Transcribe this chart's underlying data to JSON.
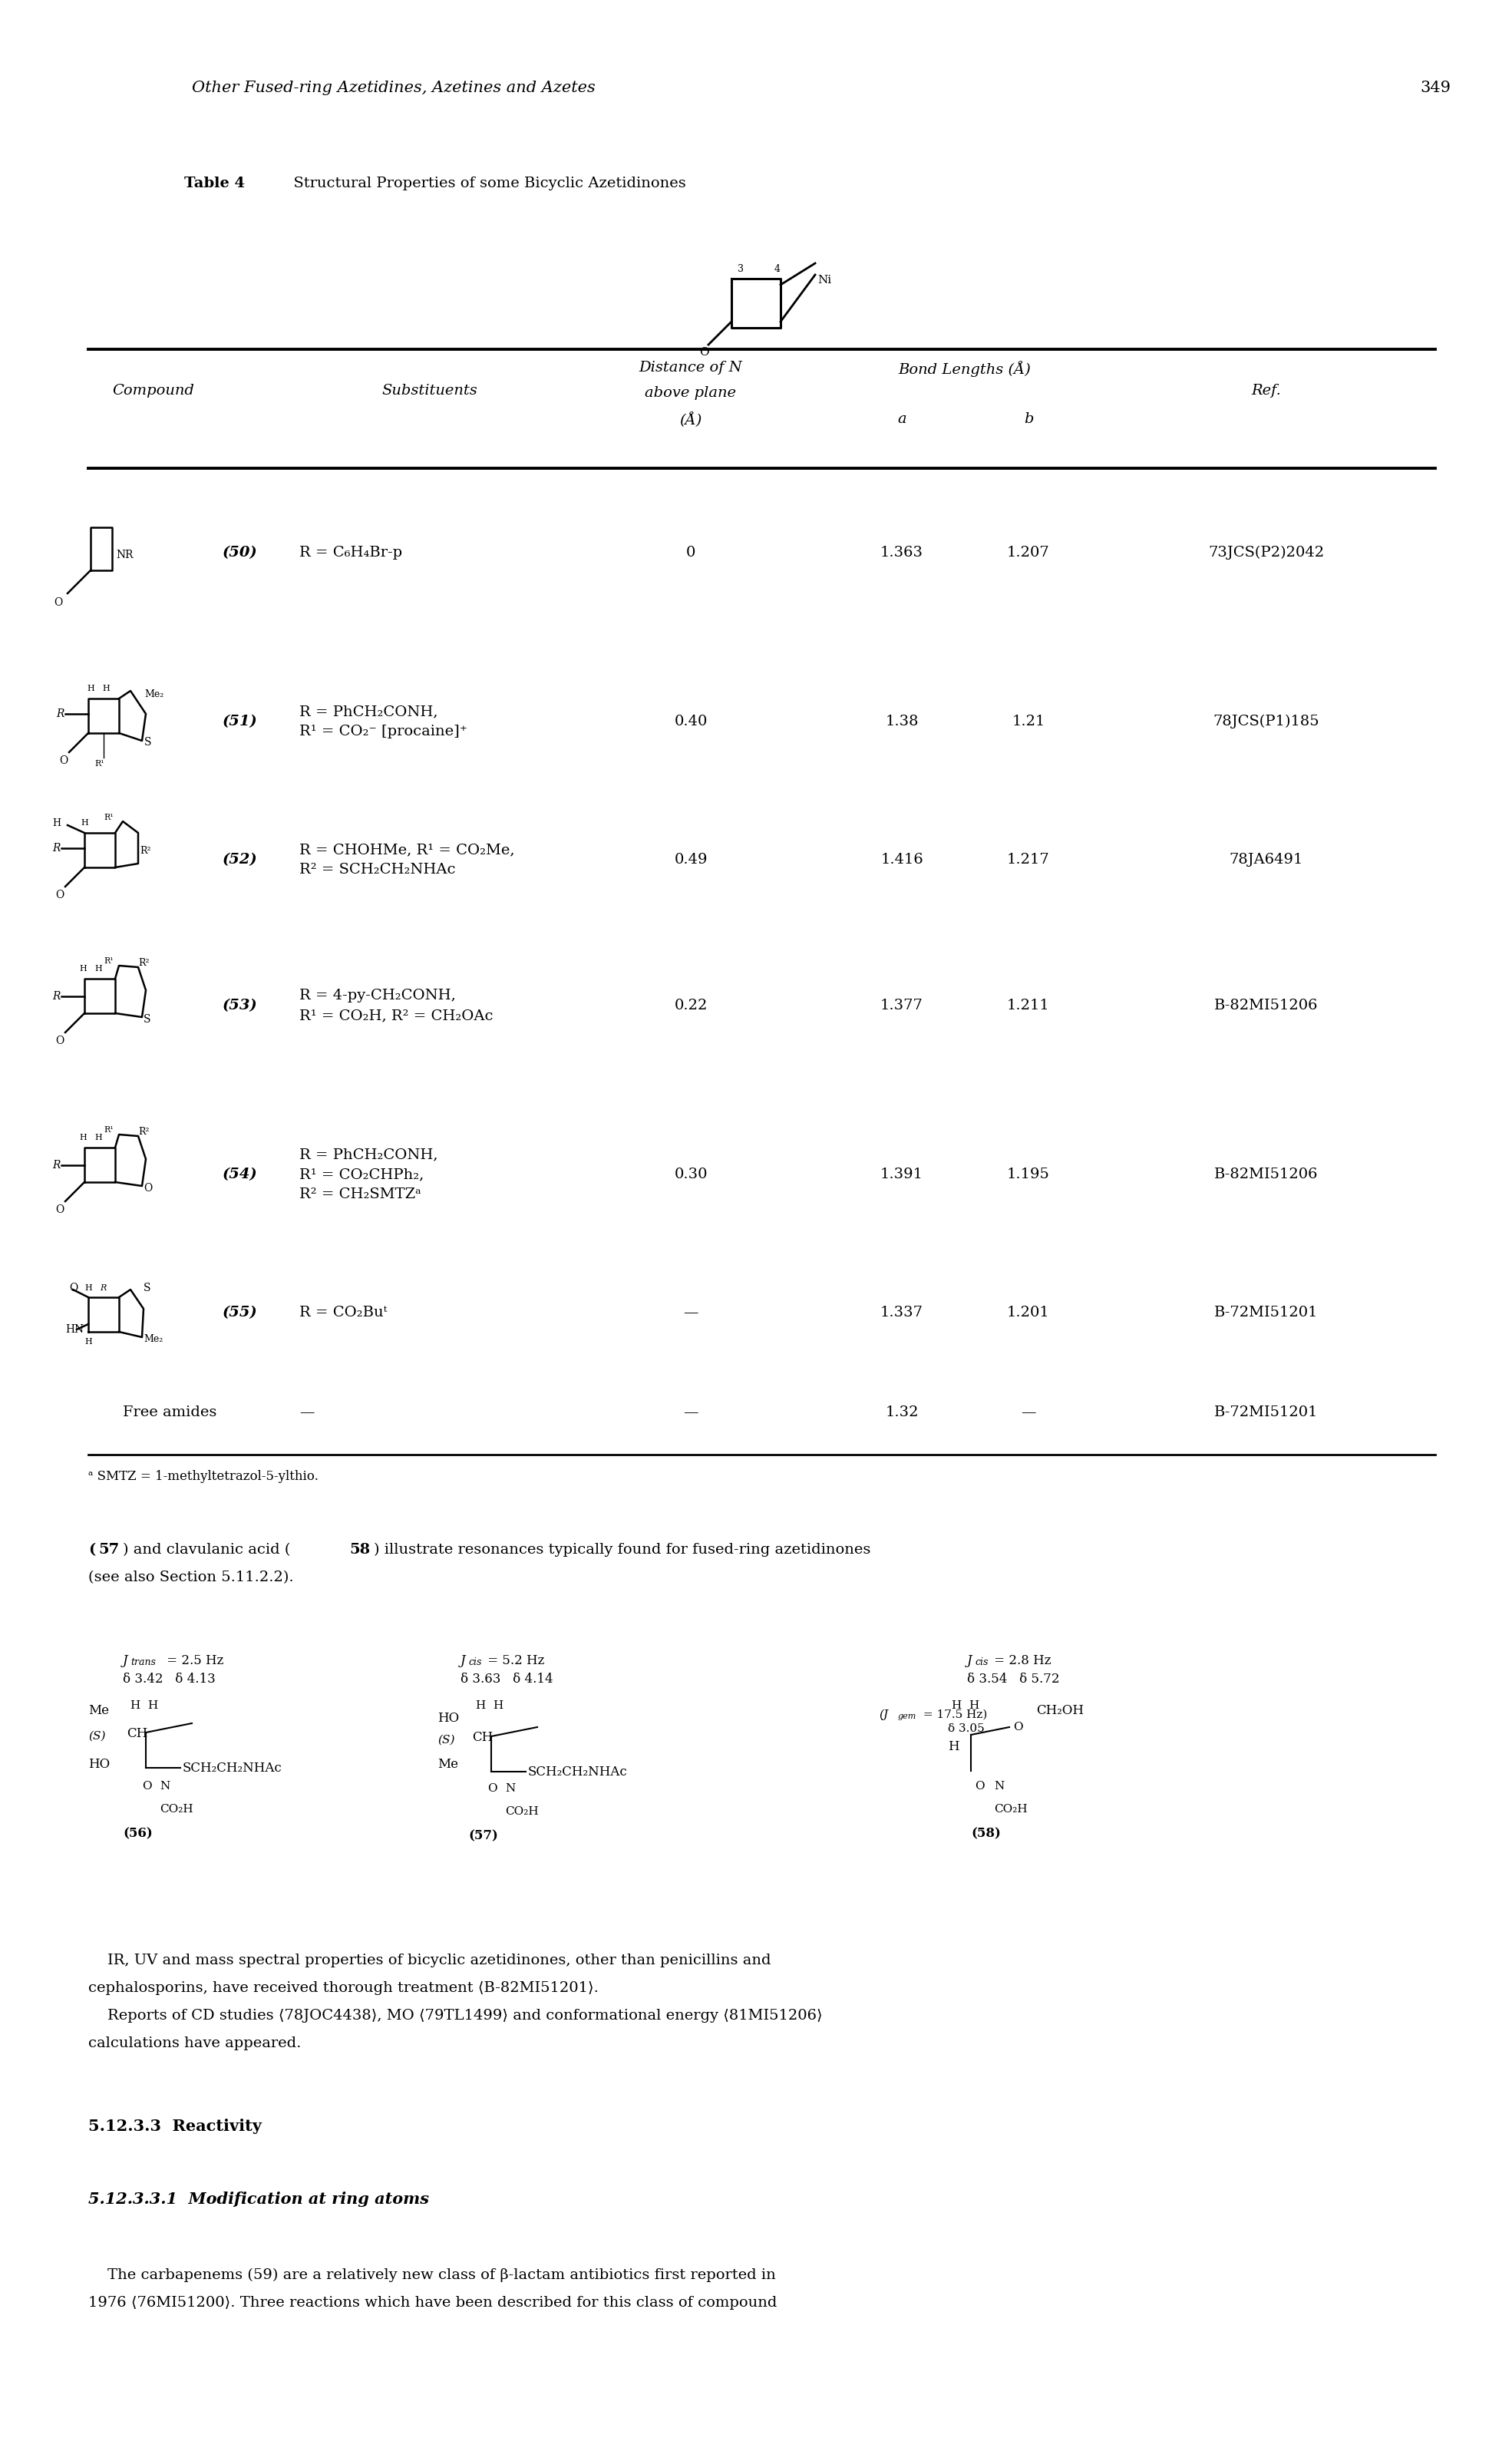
{
  "page_title": "Other Fused-ring Azetidines, Azetines and Azetes",
  "page_number": "349",
  "table_title_bold": "Table 4",
  "table_title_normal": "  Structural Properties of some Bicyclic Azetidinones",
  "col_compound": "Compound",
  "col_substituents": "Substituents",
  "col_dist_line1": "Distance of N",
  "col_dist_line2": "above plane",
  "col_dist_line3": "(Å)",
  "col_bond": "Bond Lengths (Å)",
  "col_a": "a",
  "col_b": "b",
  "col_ref": "Ref.",
  "rows": [
    {
      "num": "(50)",
      "sub1": "R = C₆H₄Br-p",
      "sub2": "",
      "sub3": "",
      "dist": "0",
      "ba": "1.363",
      "bb": "1.207",
      "ref": "73JCS(P2)2042"
    },
    {
      "num": "(51)",
      "sub1": "R = PhCH₂CONH,",
      "sub2": "R¹ = CO₂⁻ [procaine]⁺",
      "sub3": "",
      "dist": "0.40",
      "ba": "1.38",
      "bb": "1.21",
      "ref": "78JCS(P1)185"
    },
    {
      "num": "(52)",
      "sub1": "R = CHOHMe, R¹ = CO₂Me,",
      "sub2": "R² = SCH₂CH₂NHAc",
      "sub3": "",
      "dist": "0.49",
      "ba": "1.416",
      "bb": "1.217",
      "ref": "78JA6491"
    },
    {
      "num": "(53)",
      "sub1": "R = 4-py-CH₂CONH,",
      "sub2": "R¹ = CO₂H, R² = CH₂OAc",
      "sub3": "",
      "dist": "0.22",
      "ba": "1.377",
      "bb": "1.211",
      "ref": "B-82MI51206"
    },
    {
      "num": "(54)",
      "sub1": "R = PhCH₂CONH,",
      "sub2": "R¹ = CO₂CHPh₂,",
      "sub3": "R² = CH₂SMTZᵃ",
      "dist": "0.30",
      "ba": "1.391",
      "bb": "1.195",
      "ref": "B-82MI51206"
    },
    {
      "num": "(55)",
      "sub1": "R = CO₂Buᵗ",
      "sub2": "",
      "sub3": "",
      "dist": "—",
      "ba": "1.337",
      "bb": "1.201",
      "ref": "B-72MI51201"
    },
    {
      "num": "Free amides",
      "sub1": "—",
      "sub2": "",
      "sub3": "",
      "dist": "—",
      "ba": "1.32",
      "bb": "—",
      "ref": "B-72MI51201"
    }
  ],
  "footnote": "ᵃ SMTZ = 1-methyltetrazol-5-ylthio.",
  "para1a": "(57) and clavulanic acid (58) illustrate resonances typically found for fused-ring azetidinones",
  "para1b": "(see also Section 5.11.2.2).",
  "nmr_56_j": "J",
  "nmr_56_jsub": "trans",
  "nmr_56_jval": " = 2.5 Hz",
  "nmr_56_d1": "δ 3.42   δ 4.13",
  "nmr_57_j": "J",
  "nmr_57_jsub": "cis",
  "nmr_57_jval": " = 5.2 Hz",
  "nmr_57_d1": "δ 3.63   δ 4.14",
  "nmr_58_j": "J",
  "nmr_58_jsub": "cis",
  "nmr_58_jval": " = 2.8 Hz",
  "nmr_58_d1": "δ 3.54   δ 5.72",
  "nmr_gem": "(J",
  "nmr_gemsub": "gem",
  "nmr_gemval": " = 17.5 Hz)",
  "nmr_d305": "δ 3.05",
  "para2a": "IR, UV and mass spectral properties of bicyclic azetidinones, other than penicillins and",
  "para2b": "cephalosporins, have received thorough treatment ⟨B-82MI51201⟩.",
  "para2c": "    Reports of CD studies ⟨78JOC4438⟩, MO ⟨79TL1499⟩ and conformational energy ⟨81MI51206⟩",
  "para2d": "calculations have appeared.",
  "sec_title": "5.12.3.3  Reactivity",
  "subsec_title": "5.12.3.3.1  Modification at ring atoms",
  "para3a": "    The carbapenems (59) are a relatively new class of β-lactam antibiotics first reported in",
  "para3b": "1976 ⟨76MI51200⟩. Three reactions which have been described for this class of compound"
}
